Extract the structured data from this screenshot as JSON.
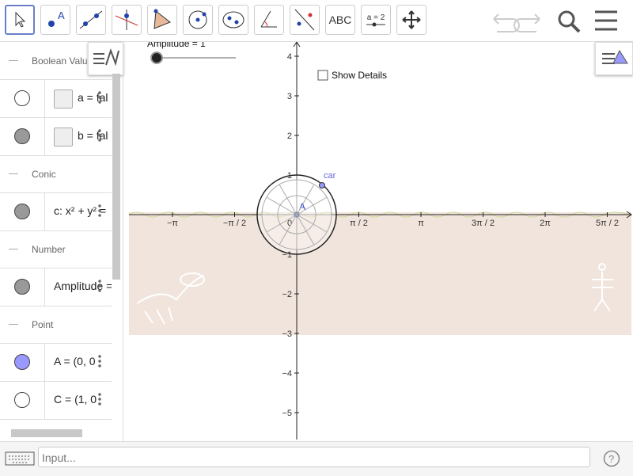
{
  "toolbar": {
    "text_tool": "ABC",
    "slider_tool": "a = 2"
  },
  "algebra": {
    "sections": [
      {
        "title": "Boolean Valu",
        "items": [
          {
            "label": "a = fal",
            "color": "#ffffff"
          },
          {
            "label": "b = fal",
            "color": "#999999"
          }
        ]
      },
      {
        "title": "Conic",
        "items": [
          {
            "label": "c: x² + y² =",
            "color": "#999999"
          }
        ]
      },
      {
        "title": "Number",
        "items": [
          {
            "label": "Amplitude =",
            "color": "#999999"
          }
        ]
      },
      {
        "title": "Point",
        "items": [
          {
            "label": "A = (0, 0",
            "color": "#9999ff"
          },
          {
            "label": "C = (1, 0",
            "color": "#ffffff"
          }
        ]
      }
    ]
  },
  "graphics": {
    "slider_label": "Amplitude = 1",
    "checkbox_label": "Show Details",
    "point_car": "car",
    "point_a": "A",
    "origin": "0",
    "xticks": [
      "−π",
      "−π / 2",
      "π / 2",
      "π",
      "3π / 2",
      "2π",
      "5π / 2"
    ],
    "yticks": [
      "4",
      "3",
      "2",
      "1",
      "−1",
      "−2",
      "−3",
      "−4",
      "−5"
    ]
  },
  "input": {
    "placeholder": "Input..."
  }
}
